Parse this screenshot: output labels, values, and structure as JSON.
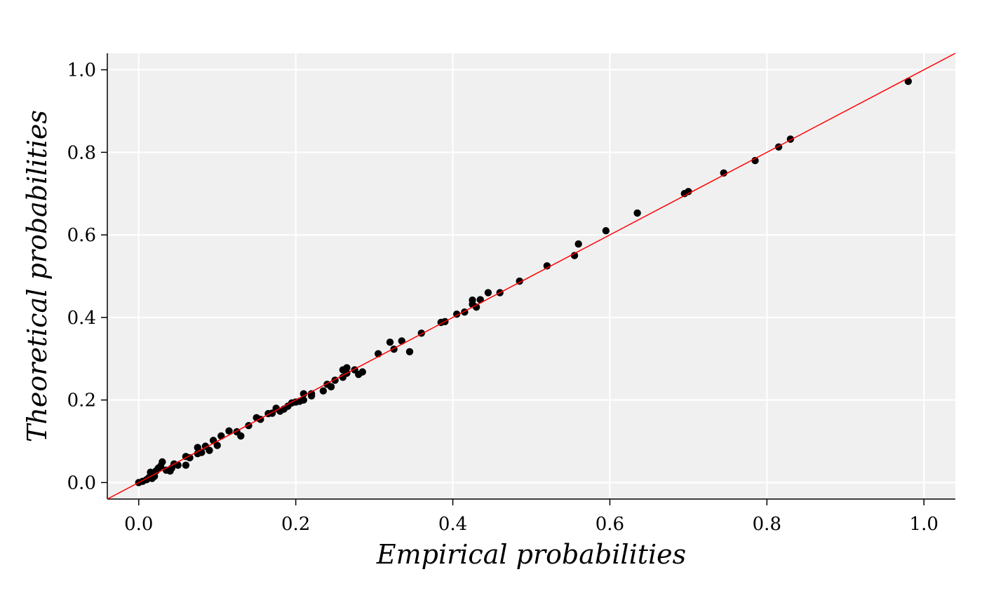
{
  "chart_data": {
    "type": "scatter",
    "title": "",
    "xlabel": "Empirical probabilities",
    "ylabel": "Theoretical probabilities",
    "xlim": [
      -0.04,
      1.04
    ],
    "ylim": [
      -0.04,
      1.04
    ],
    "x_ticks": [
      "0.0",
      "0.2",
      "0.4",
      "0.6",
      "0.8",
      "1.0"
    ],
    "y_ticks": [
      "0.0",
      "0.2",
      "0.4",
      "0.6",
      "0.8",
      "1.0"
    ],
    "x_tick_values": [
      0,
      0.2,
      0.4,
      0.6,
      0.8,
      1.0
    ],
    "y_tick_values": [
      0,
      0.2,
      0.4,
      0.6,
      0.8,
      1.0
    ],
    "grid": true,
    "reference_line": {
      "slope": 1,
      "intercept": 0,
      "color": "#ff0000"
    },
    "colors": {
      "background": "#f0f0f0",
      "grid": "#ffffff",
      "points": "#000000",
      "reference": "#ff0000"
    },
    "points": [
      [
        0.0,
        0.0
      ],
      [
        0.005,
        0.003
      ],
      [
        0.01,
        0.007
      ],
      [
        0.013,
        0.012
      ],
      [
        0.015,
        0.025
      ],
      [
        0.017,
        0.01
      ],
      [
        0.02,
        0.015
      ],
      [
        0.022,
        0.028
      ],
      [
        0.025,
        0.035
      ],
      [
        0.028,
        0.04
      ],
      [
        0.03,
        0.05
      ],
      [
        0.035,
        0.03
      ],
      [
        0.04,
        0.028
      ],
      [
        0.042,
        0.035
      ],
      [
        0.045,
        0.045
      ],
      [
        0.05,
        0.042
      ],
      [
        0.06,
        0.042
      ],
      [
        0.06,
        0.063
      ],
      [
        0.065,
        0.06
      ],
      [
        0.075,
        0.07
      ],
      [
        0.075,
        0.085
      ],
      [
        0.08,
        0.073
      ],
      [
        0.085,
        0.088
      ],
      [
        0.09,
        0.078
      ],
      [
        0.095,
        0.102
      ],
      [
        0.1,
        0.09
      ],
      [
        0.105,
        0.113
      ],
      [
        0.115,
        0.125
      ],
      [
        0.125,
        0.123
      ],
      [
        0.13,
        0.113
      ],
      [
        0.14,
        0.138
      ],
      [
        0.15,
        0.157
      ],
      [
        0.155,
        0.153
      ],
      [
        0.165,
        0.167
      ],
      [
        0.17,
        0.168
      ],
      [
        0.175,
        0.18
      ],
      [
        0.18,
        0.173
      ],
      [
        0.185,
        0.178
      ],
      [
        0.19,
        0.185
      ],
      [
        0.195,
        0.193
      ],
      [
        0.2,
        0.195
      ],
      [
        0.205,
        0.197
      ],
      [
        0.21,
        0.2
      ],
      [
        0.21,
        0.215
      ],
      [
        0.22,
        0.21
      ],
      [
        0.22,
        0.215
      ],
      [
        0.235,
        0.222
      ],
      [
        0.24,
        0.238
      ],
      [
        0.245,
        0.232
      ],
      [
        0.25,
        0.248
      ],
      [
        0.26,
        0.255
      ],
      [
        0.26,
        0.273
      ],
      [
        0.265,
        0.278
      ],
      [
        0.265,
        0.265
      ],
      [
        0.275,
        0.273
      ],
      [
        0.28,
        0.262
      ],
      [
        0.285,
        0.268
      ],
      [
        0.305,
        0.312
      ],
      [
        0.32,
        0.34
      ],
      [
        0.325,
        0.323
      ],
      [
        0.335,
        0.343
      ],
      [
        0.345,
        0.317
      ],
      [
        0.36,
        0.362
      ],
      [
        0.385,
        0.388
      ],
      [
        0.39,
        0.39
      ],
      [
        0.405,
        0.408
      ],
      [
        0.415,
        0.413
      ],
      [
        0.425,
        0.432
      ],
      [
        0.425,
        0.442
      ],
      [
        0.43,
        0.425
      ],
      [
        0.435,
        0.443
      ],
      [
        0.445,
        0.46
      ],
      [
        0.46,
        0.46
      ],
      [
        0.485,
        0.488
      ],
      [
        0.52,
        0.525
      ],
      [
        0.555,
        0.55
      ],
      [
        0.56,
        0.578
      ],
      [
        0.595,
        0.61
      ],
      [
        0.635,
        0.653
      ],
      [
        0.695,
        0.7
      ],
      [
        0.7,
        0.705
      ],
      [
        0.745,
        0.75
      ],
      [
        0.785,
        0.78
      ],
      [
        0.815,
        0.813
      ],
      [
        0.83,
        0.832
      ],
      [
        0.98,
        0.972
      ]
    ]
  }
}
